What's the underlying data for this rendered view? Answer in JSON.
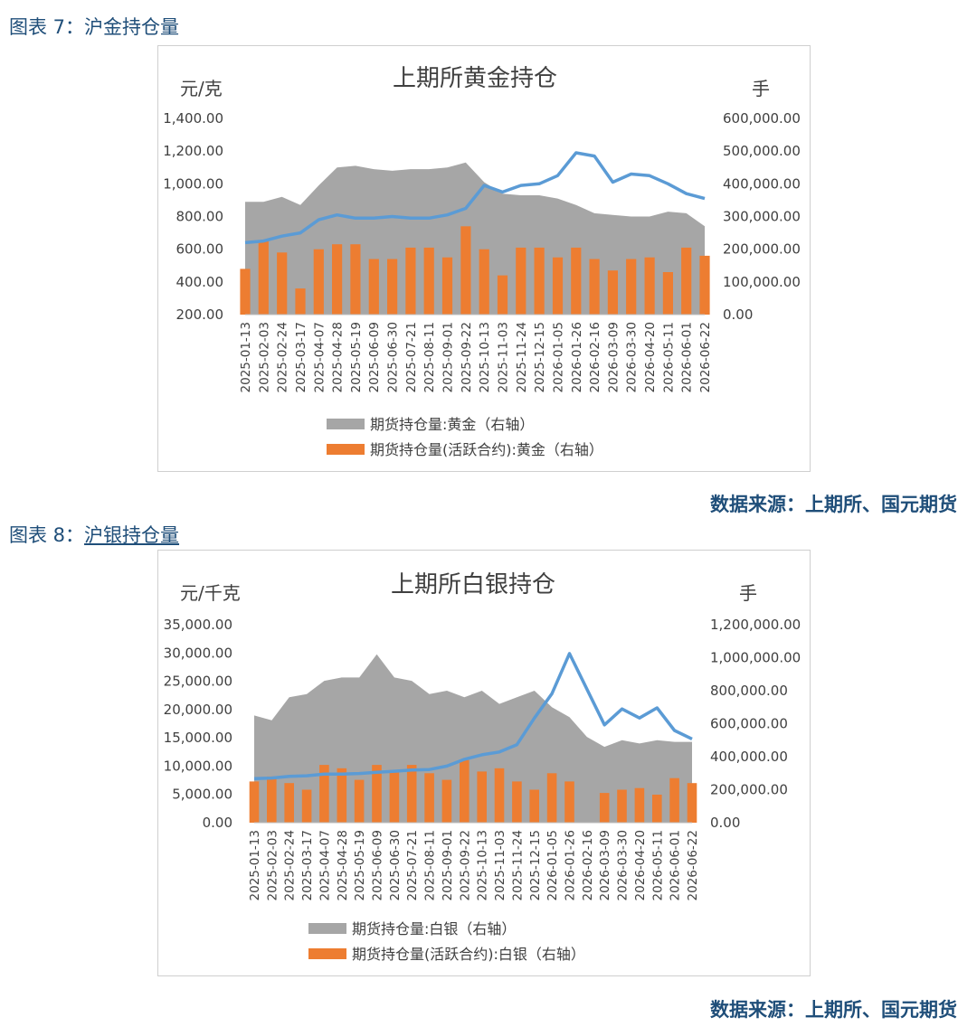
{
  "figures": [
    {
      "title_prefix": "图表 7：",
      "title_text": "沪金持仓量",
      "source": "数据来源：上期所、国元期货"
    },
    {
      "title_prefix": "图表 8：",
      "title_text": "沪银持仓量",
      "source": "数据来源：上期所、国元期货"
    }
  ],
  "colors": {
    "area": "#a6a6a6",
    "bars": "#ed7d31",
    "line": "#5b9bd5",
    "figure_title": "#1f4e79"
  },
  "chart_data": [
    {
      "type": "bar",
      "title": "上期所黄金持仓",
      "ylabel_left": "元/克",
      "ylabel_right": "手",
      "yticks_left": [
        "1,400.00",
        "1,200.00",
        "1,000.00",
        "800.00",
        "600.00",
        "400.00",
        "200.00"
      ],
      "yticks_right": [
        "600,000.00",
        "500,000.00",
        "400,000.00",
        "300,000.00",
        "200,000.00",
        "100,000.00",
        "0.00"
      ],
      "ylim_left": [
        200,
        1400
      ],
      "ylim_right": [
        0,
        600000
      ],
      "legend": [
        "期货持仓量:黄金（右轴）",
        "期货持仓量(活跃合约):黄金（右轴）"
      ],
      "legend_position": "bottom",
      "categories": [
        "2025-01-13",
        "2025-02-03",
        "2025-02-24",
        "2025-03-17",
        "2025-04-07",
        "2025-04-28",
        "2025-05-19",
        "2025-06-09",
        "2025-06-30",
        "2025-07-21",
        "2025-08-11",
        "2025-09-01",
        "2025-09-22",
        "2025-10-13",
        "2025-11-03",
        "2025-11-24",
        "2025-12-15",
        "2026-01-05",
        "2026-01-26",
        "2026-02-16",
        "2026-03-09",
        "2026-03-30",
        "2026-04-20",
        "2026-05-11",
        "2026-06-01",
        "2026-06-22"
      ],
      "series": [
        {
          "kind": "area",
          "axis": "right",
          "values": [
            345000,
            345000,
            360000,
            335000,
            395000,
            450000,
            455000,
            445000,
            440000,
            445000,
            445000,
            450000,
            465000,
            405000,
            370000,
            365000,
            365000,
            355000,
            335000,
            310000,
            305000,
            300000,
            300000,
            315000,
            310000,
            270000
          ]
        },
        {
          "kind": "bar",
          "axis": "right",
          "values": [
            140000,
            225000,
            190000,
            80000,
            200000,
            215000,
            215000,
            170000,
            170000,
            205000,
            205000,
            175000,
            270000,
            200000,
            120000,
            205000,
            205000,
            175000,
            205000,
            170000,
            135000,
            170000,
            175000,
            130000,
            205000,
            180000
          ]
        },
        {
          "kind": "line",
          "axis": "left",
          "values": [
            640,
            650,
            680,
            700,
            780,
            810,
            790,
            790,
            800,
            790,
            790,
            810,
            850,
            990,
            950,
            990,
            1000,
            1050,
            1190,
            1170,
            1010,
            1060,
            1050,
            1000,
            940,
            910
          ]
        }
      ]
    },
    {
      "type": "bar",
      "title": "上期所白银持仓",
      "ylabel_left": "元/千克",
      "ylabel_right": "手",
      "yticks_left": [
        "35,000.00",
        "30,000.00",
        "25,000.00",
        "20,000.00",
        "15,000.00",
        "10,000.00",
        "5,000.00",
        "0.00"
      ],
      "yticks_right": [
        "1,200,000.00",
        "1,000,000.00",
        "800,000.00",
        "600,000.00",
        "400,000.00",
        "200,000.00",
        "0.00"
      ],
      "ylim_left": [
        0,
        35000
      ],
      "ylim_right": [
        0,
        1200000
      ],
      "legend": [
        "期货持仓量:白银（右轴）",
        "期货持仓量(活跃合约):白银（右轴）"
      ],
      "legend_position": "bottom",
      "categories": [
        "2025-01-13",
        "2025-02-03",
        "2025-02-24",
        "2025-03-17",
        "2025-04-07",
        "2025-04-28",
        "2025-05-19",
        "2025-06-09",
        "2025-06-30",
        "2025-07-21",
        "2025-08-11",
        "2025-09-01",
        "2025-09-22",
        "2025-10-13",
        "2025-11-03",
        "2025-11-24",
        "2025-12-15",
        "2026-01-05",
        "2026-01-26",
        "2026-02-16",
        "2026-03-09",
        "2026-03-30",
        "2026-04-20",
        "2026-05-11",
        "2026-06-01",
        "2026-06-22"
      ],
      "series": [
        {
          "kind": "area",
          "axis": "right",
          "values": [
            650000,
            620000,
            760000,
            780000,
            860000,
            880000,
            880000,
            1020000,
            880000,
            860000,
            780000,
            800000,
            760000,
            800000,
            720000,
            760000,
            800000,
            700000,
            640000,
            520000,
            460000,
            500000,
            480000,
            500000,
            490000,
            490000
          ]
        },
        {
          "kind": "bar",
          "axis": "right",
          "values": [
            250000,
            280000,
            240000,
            200000,
            350000,
            330000,
            260000,
            350000,
            320000,
            350000,
            300000,
            260000,
            380000,
            310000,
            330000,
            250000,
            200000,
            300000,
            250000,
            0,
            180000,
            200000,
            210000,
            170000,
            270000,
            240000
          ]
        },
        {
          "kind": "line",
          "axis": "left",
          "values": [
            7800,
            7900,
            8200,
            8300,
            8600,
            8600,
            8700,
            8900,
            9100,
            9300,
            9400,
            10000,
            11200,
            12000,
            12500,
            13800,
            18500,
            22800,
            29900,
            23600,
            17300,
            20100,
            18500,
            20300,
            16300,
            14800
          ]
        }
      ]
    }
  ]
}
